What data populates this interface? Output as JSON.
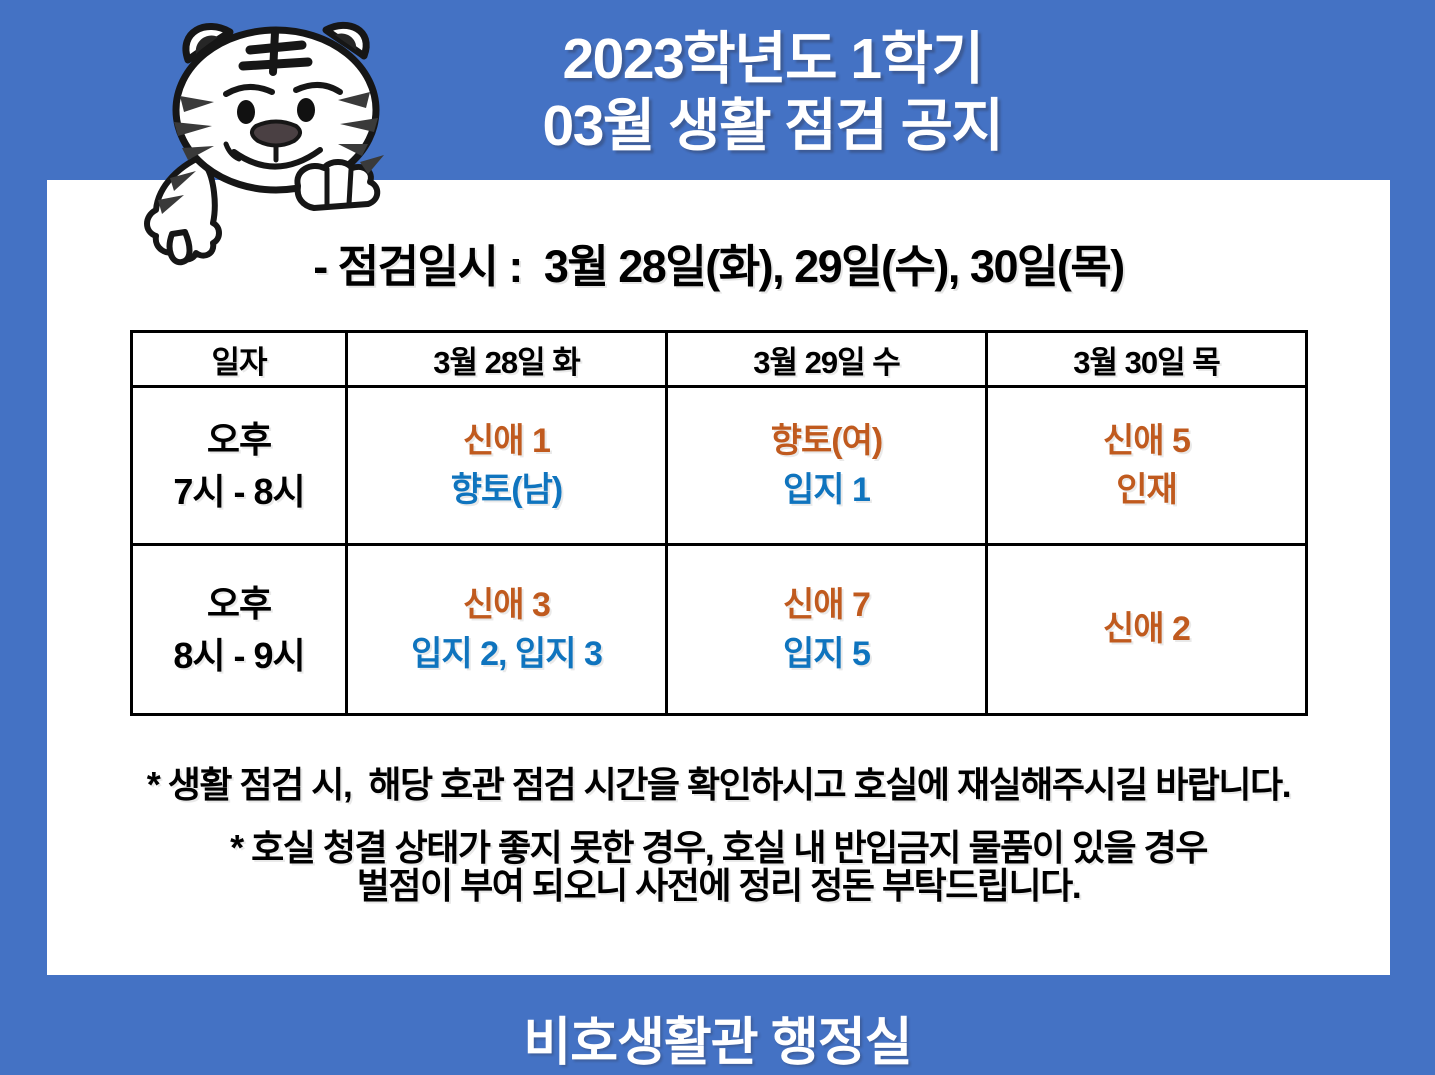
{
  "header": {
    "title_line1": "2023학년도 1학기",
    "title_line2": "03월 생활 점검 공지"
  },
  "notice": {
    "date_line": "- 점검일시 :  3월 28일(화), 29일(수), 30일(목)"
  },
  "schedule_table": {
    "headers": [
      "일자",
      "3월 28일 화",
      "3월 29일 수",
      "3월 30일 목"
    ],
    "rows": [
      {
        "time_lines": [
          "오후",
          "7시 - 8시"
        ],
        "cells": [
          [
            {
              "text": "신애 1",
              "color": "orange"
            },
            {
              "text": "향토(남)",
              "color": "blue"
            }
          ],
          [
            {
              "text": "향토(여)",
              "color": "orange"
            },
            {
              "text": "입지 1",
              "color": "blue"
            }
          ],
          [
            {
              "text": "신애 5",
              "color": "orange"
            },
            {
              "text": "인재",
              "color": "orange"
            }
          ]
        ]
      },
      {
        "time_lines": [
          "오후",
          "8시 - 9시"
        ],
        "cells": [
          [
            {
              "text": "신애 3",
              "color": "orange"
            },
            {
              "text": "입지 2, 입지 3",
              "color": "blue"
            }
          ],
          [
            {
              "text": "신애 7",
              "color": "orange"
            },
            {
              "text": "입지 5",
              "color": "blue"
            }
          ],
          [
            {
              "text": "신애 2",
              "color": "orange"
            }
          ]
        ]
      }
    ]
  },
  "notes": [
    {
      "lines": [
        "* 생활 점검 시,  해당 호관 점검 시간을 확인하시고 호실에 재실해주시길 바랍니다."
      ]
    },
    {
      "lines": [
        "* 호실 청결 상태가 좋지 못한 경우, 호실 내 반입금지 물품이 있을 경우",
        "벌점이 부여 되오니 사전에 정리 정돈 부탁드립니다."
      ]
    }
  ],
  "footer": {
    "signature": "비호생활관 행정실"
  },
  "mascot": {
    "label": "tiger-mascot"
  },
  "colors": {
    "background_blue": "#4472C4",
    "card_white": "#FFFFFF",
    "accent_orange": "#C05A1E",
    "accent_blue": "#0F74BE",
    "text_black": "#000000",
    "border_black": "#000000"
  }
}
